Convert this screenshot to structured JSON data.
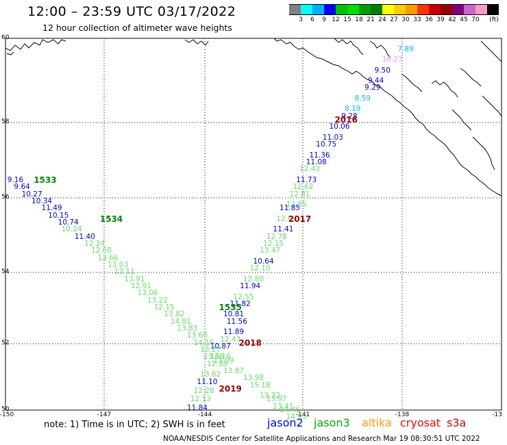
{
  "header": {
    "title": "12:00 – 23:59 UTC 03/17/2022",
    "subtitle": "12 hour collection of altimeter wave heights"
  },
  "legend": {
    "unit": "(ft)",
    "colors": [
      "#808080",
      "#00ffff",
      "#00b0ff",
      "#0000ff",
      "#00c000",
      "#00e000",
      "#00a000",
      "#008000",
      "#ffff00",
      "#ffcc00",
      "#ff9900",
      "#ff3300",
      "#cc0000",
      "#990000",
      "#800080",
      "#cc66cc",
      "#ff99cc",
      "#000000"
    ],
    "ticks": [
      "3",
      "6",
      "9",
      "12",
      "15",
      "18",
      "21",
      "24",
      "27",
      "30",
      "33",
      "36",
      "39",
      "42",
      "45",
      "70"
    ]
  },
  "axes": {
    "lat_labels": [
      "60",
      "58",
      "56",
      "54",
      "52",
      "50"
    ],
    "lon_labels": [
      "-150",
      "-147",
      "-144",
      "-141",
      "-138",
      "-13"
    ]
  },
  "footer": {
    "note": "note:  1) Time is in UTC;  2) SWH is in feet",
    "satellites": [
      {
        "name": "jason2",
        "color": "#0000dd"
      },
      {
        "name": "jason3",
        "color": "#00aa00"
      },
      {
        "name": "altika",
        "color": "#ff9900"
      },
      {
        "name": "cryosat",
        "color": "#ff0000"
      },
      {
        "name": "s3a",
        "color": "#cc0000"
      }
    ],
    "credit": "NOAA/NESDIS Center for Satellite Applications and Research    Mar 19 08:30:51 UTC 2022"
  },
  "colors": {
    "jason2": "#0000cc",
    "jason3_light": "#66dd66",
    "jason3_pass": "#008800",
    "cyan": "#00bbee",
    "pink": "#ff99dd",
    "pass_red": "#990000"
  },
  "pass_labels": [
    {
      "text": "2016",
      "lon": -139.7,
      "lat": 57.7,
      "color": "pass_red"
    },
    {
      "text": "2017",
      "lon": -141.1,
      "lat": 54.9,
      "color": "pass_red"
    },
    {
      "text": "2018",
      "lon": -142.6,
      "lat": 51.4,
      "color": "pass_red"
    },
    {
      "text": "2019",
      "lon": -143.2,
      "lat": 50.1,
      "color": "pass_red"
    },
    {
      "text": "1533",
      "lon": -148.8,
      "lat": 56.0,
      "color": "jason3_pass"
    },
    {
      "text": "1534",
      "lon": -146.8,
      "lat": 54.9,
      "color": "jason3_pass"
    },
    {
      "text": "1535",
      "lon": -143.2,
      "lat": 52.4,
      "color": "jason3_pass"
    }
  ],
  "measurements": [
    {
      "v": "7.89",
      "lon": -137.9,
      "lat": 59.7,
      "c": "cyan"
    },
    {
      "v": "16.23",
      "lon": -138.3,
      "lat": 59.4,
      "c": "pink"
    },
    {
      "v": "9.50",
      "lon": -138.6,
      "lat": 59.1,
      "c": "jason2"
    },
    {
      "v": "9.44",
      "lon": -138.8,
      "lat": 58.8,
      "c": "jason2"
    },
    {
      "v": "9.29",
      "lon": -138.9,
      "lat": 58.6,
      "c": "jason2"
    },
    {
      "v": "8.59",
      "lon": -139.2,
      "lat": 58.3,
      "c": "cyan"
    },
    {
      "v": "8.19",
      "lon": -139.5,
      "lat": 58.0,
      "c": "cyan"
    },
    {
      "v": "9.28",
      "lon": -139.6,
      "lat": 57.8,
      "c": "jason2"
    },
    {
      "v": "10.06",
      "lon": -139.9,
      "lat": 57.5,
      "c": "jason2"
    },
    {
      "v": "11.03",
      "lon": -140.1,
      "lat": 57.2,
      "c": "jason2"
    },
    {
      "v": "10.75",
      "lon": -140.3,
      "lat": 57.0,
      "c": "jason2"
    },
    {
      "v": "11.36",
      "lon": -140.5,
      "lat": 56.7,
      "c": "jason2"
    },
    {
      "v": "11.08",
      "lon": -140.6,
      "lat": 56.5,
      "c": "jason2"
    },
    {
      "v": "12.43",
      "lon": -140.8,
      "lat": 56.3,
      "c": "jason3_light"
    },
    {
      "v": "11.73",
      "lon": -140.9,
      "lat": 56.0,
      "c": "jason2"
    },
    {
      "v": "12.62",
      "lon": -141.0,
      "lat": 55.8,
      "c": "jason3_light"
    },
    {
      "v": "12.81",
      "lon": -141.1,
      "lat": 55.6,
      "c": "jason3_light"
    },
    {
      "v": "12.85",
      "lon": -141.2,
      "lat": 55.3,
      "c": "jason3_light"
    },
    {
      "v": "11.85",
      "lon": -141.4,
      "lat": 55.2,
      "c": "jason2"
    },
    {
      "v": "12.63",
      "lon": -141.5,
      "lat": 54.9,
      "c": "jason3_light"
    },
    {
      "v": "11.41",
      "lon": -141.6,
      "lat": 54.6,
      "c": "jason2"
    },
    {
      "v": "12.78",
      "lon": -141.8,
      "lat": 54.4,
      "c": "jason3_light"
    },
    {
      "v": "12.15",
      "lon": -141.9,
      "lat": 54.2,
      "c": "jason3_light"
    },
    {
      "v": "13.47",
      "lon": -142.0,
      "lat": 54.0,
      "c": "jason3_light"
    },
    {
      "v": "10.64",
      "lon": -142.2,
      "lat": 53.7,
      "c": "jason2"
    },
    {
      "v": "12.10",
      "lon": -142.3,
      "lat": 53.5,
      "c": "jason3_light"
    },
    {
      "v": "12.80",
      "lon": -142.5,
      "lat": 53.2,
      "c": "jason3_light"
    },
    {
      "v": "11.94",
      "lon": -142.6,
      "lat": 53.0,
      "c": "jason2"
    },
    {
      "v": "12.55",
      "lon": -142.8,
      "lat": 52.7,
      "c": "jason3_light"
    },
    {
      "v": "11.82",
      "lon": -142.9,
      "lat": 52.5,
      "c": "jason2"
    },
    {
      "v": "10.81",
      "lon": -143.1,
      "lat": 52.2,
      "c": "jason2"
    },
    {
      "v": "11.56",
      "lon": -143.0,
      "lat": 52.0,
      "c": "jason2"
    },
    {
      "v": "11.89",
      "lon": -143.1,
      "lat": 51.7,
      "c": "jason2"
    },
    {
      "v": "12.43",
      "lon": -143.2,
      "lat": 51.5,
      "c": "jason3_light"
    },
    {
      "v": "10.87",
      "lon": -143.5,
      "lat": 51.3,
      "c": "jason2"
    },
    {
      "v": "13.16",
      "lon": -143.5,
      "lat": 51.0,
      "c": "jason3_light"
    },
    {
      "v": "12.38",
      "lon": -143.6,
      "lat": 50.8,
      "c": "jason3_light"
    },
    {
      "v": "13.62",
      "lon": -143.8,
      "lat": 50.5,
      "c": "jason3_light"
    },
    {
      "v": "11.10",
      "lon": -143.9,
      "lat": 50.3,
      "c": "jason2"
    },
    {
      "v": "12.28",
      "lon": -144.0,
      "lat": 50.05,
      "c": "jason3_light"
    },
    {
      "v": "12.13",
      "lon": -144.1,
      "lat": 49.8,
      "c": "jason3_light"
    },
    {
      "v": "11.84",
      "lon": -144.2,
      "lat": 49.55,
      "c": "jason2"
    },
    {
      "v": "9.16",
      "lon": -149.7,
      "lat": 56.0,
      "c": "jason2"
    },
    {
      "v": "9.64",
      "lon": -149.5,
      "lat": 55.8,
      "c": "jason2"
    },
    {
      "v": "10.27",
      "lon": -149.2,
      "lat": 55.6,
      "c": "jason2"
    },
    {
      "v": "10.34",
      "lon": -148.9,
      "lat": 55.4,
      "c": "jason2"
    },
    {
      "v": "11.49",
      "lon": -148.6,
      "lat": 55.2,
      "c": "jason2"
    },
    {
      "v": "10.15",
      "lon": -148.4,
      "lat": 55.0,
      "c": "jason2"
    },
    {
      "v": "10.74",
      "lon": -148.1,
      "lat": 54.8,
      "c": "jason2"
    },
    {
      "v": "10.24",
      "lon": -148.0,
      "lat": 54.6,
      "c": "jason3_light"
    },
    {
      "v": "11.40",
      "lon": -147.6,
      "lat": 54.4,
      "c": "jason2"
    },
    {
      "v": "12.24",
      "lon": -147.3,
      "lat": 54.2,
      "c": "jason3_light"
    },
    {
      "v": "12.60",
      "lon": -147.1,
      "lat": 54.0,
      "c": "jason3_light"
    },
    {
      "v": "13.66",
      "lon": -146.9,
      "lat": 53.8,
      "c": "jason3_light"
    },
    {
      "v": "13.03",
      "lon": -146.6,
      "lat": 53.6,
      "c": "jason3_light"
    },
    {
      "v": "13.11",
      "lon": -146.4,
      "lat": 53.4,
      "c": "jason3_light"
    },
    {
      "v": "13.91",
      "lon": -146.1,
      "lat": 53.2,
      "c": "jason3_light"
    },
    {
      "v": "12.91",
      "lon": -145.9,
      "lat": 53.0,
      "c": "jason3_light"
    },
    {
      "v": "13.06",
      "lon": -145.7,
      "lat": 52.8,
      "c": "jason3_light"
    },
    {
      "v": "13.22",
      "lon": -145.4,
      "lat": 52.6,
      "c": "jason3_light"
    },
    {
      "v": "12.15",
      "lon": -145.2,
      "lat": 52.4,
      "c": "jason3_light"
    },
    {
      "v": "13.82",
      "lon": -144.9,
      "lat": 52.2,
      "c": "jason3_light"
    },
    {
      "v": "14.81",
      "lon": -144.7,
      "lat": 52.0,
      "c": "jason3_light"
    },
    {
      "v": "13.83",
      "lon": -144.5,
      "lat": 51.8,
      "c": "jason3_light"
    },
    {
      "v": "13.66",
      "lon": -144.2,
      "lat": 51.6,
      "c": "jason3_light"
    },
    {
      "v": "14.16",
      "lon": -144.0,
      "lat": 51.4,
      "c": "jason3_light"
    },
    {
      "v": "13.27",
      "lon": -143.8,
      "lat": 51.2,
      "c": "jason3_light"
    },
    {
      "v": "13.66",
      "lon": -143.7,
      "lat": 51.0,
      "c": "jason3_light"
    },
    {
      "v": "13.09",
      "lon": -143.4,
      "lat": 50.9,
      "c": "jason3_light"
    },
    {
      "v": "13.87",
      "lon": -143.1,
      "lat": 50.6,
      "c": "jason3_light"
    },
    {
      "v": "13.98",
      "lon": -142.5,
      "lat": 50.4,
      "c": "jason3_light"
    },
    {
      "v": "15.18",
      "lon": -142.3,
      "lat": 50.2,
      "c": "jason3_light"
    },
    {
      "v": "13.32",
      "lon": -142.0,
      "lat": 49.9,
      "c": "jason3_light"
    },
    {
      "v": "13.97",
      "lon": -141.8,
      "lat": 49.8,
      "c": "jason3_light"
    },
    {
      "v": "13.41",
      "lon": -141.6,
      "lat": 49.6,
      "c": "jason3_light"
    },
    {
      "v": "14.46",
      "lon": -141.4,
      "lat": 49.5,
      "c": "jason3_light"
    },
    {
      "v": "14.93",
      "lon": -141.2,
      "lat": 49.3,
      "c": "jason3_light"
    }
  ]
}
